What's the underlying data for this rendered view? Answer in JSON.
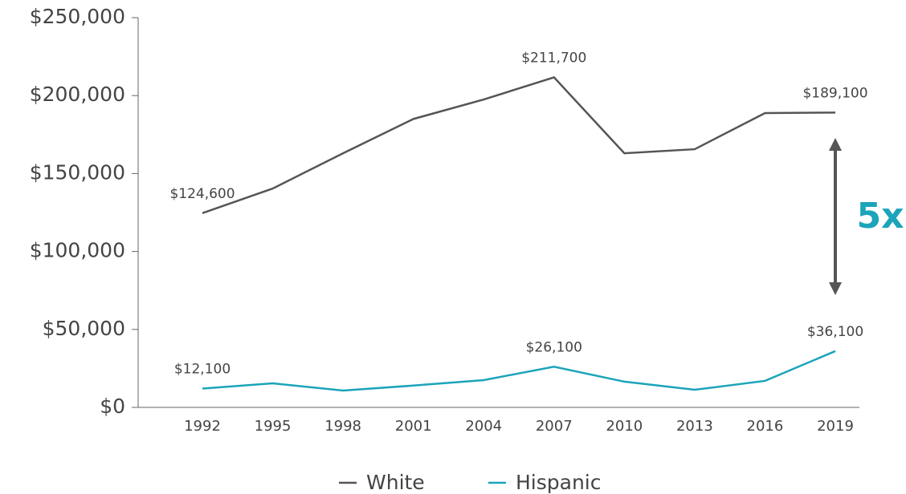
{
  "chart_data": {
    "type": "line",
    "categories": [
      "1992",
      "1995",
      "1998",
      "2001",
      "2004",
      "2007",
      "2010",
      "2013",
      "2016",
      "2019"
    ],
    "series": [
      {
        "name": "White",
        "color": "#555555",
        "values": [
          124600,
          140400,
          163000,
          185000,
          197500,
          211700,
          163000,
          165600,
          188800,
          189100
        ],
        "value_labels": [
          "$124,600",
          null,
          null,
          null,
          null,
          "$211,700",
          null,
          null,
          null,
          "$189,100"
        ]
      },
      {
        "name": "Hispanic",
        "color": "#1ba4ba",
        "values": [
          12100,
          15400,
          10800,
          14000,
          17500,
          26100,
          16500,
          11300,
          17000,
          36100
        ],
        "value_labels": [
          "$12,100",
          null,
          null,
          null,
          null,
          "$26,100",
          null,
          null,
          null,
          "$36,100"
        ]
      }
    ],
    "ylim": [
      0,
      250000
    ],
    "yticks": [
      {
        "value": 0,
        "label": "$0"
      },
      {
        "value": 50000,
        "label": "$50,000"
      },
      {
        "value": 100000,
        "label": "$100,000"
      },
      {
        "value": 150000,
        "label": "$150,000"
      },
      {
        "value": 200000,
        "label": "$200,000"
      },
      {
        "value": 250000,
        "label": "$250,000"
      }
    ],
    "annotation": "5x",
    "legend": "bottom"
  }
}
